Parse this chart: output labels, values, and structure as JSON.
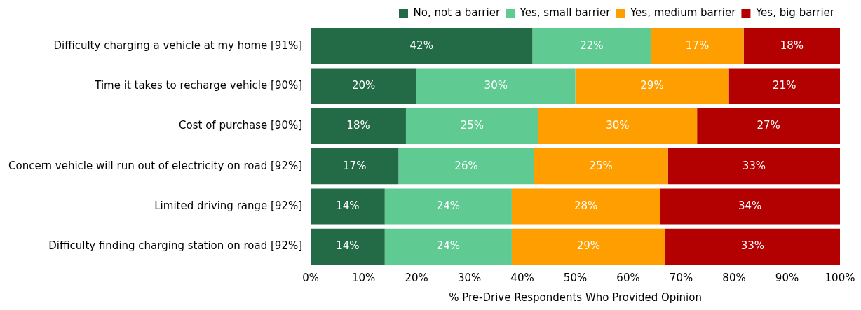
{
  "chart_data": {
    "type": "bar",
    "orientation": "horizontal",
    "stacked": true,
    "legend": "top right",
    "xlabel": "% Pre-Drive Respondents Who Provided Opinion",
    "categories": [
      "Difficulty charging a vehicle at my home [91%]",
      "Time it takes to recharge vehicle [90%]",
      "Cost of purchase [90%]",
      "Concern vehicle will run out of electricity on road [92%]",
      "Limited driving range [92%]",
      "Difficulty finding charging station on road [92%]"
    ],
    "series": [
      {
        "name": "No, not a barrier",
        "color": "#236a46",
        "values": [
          41.9,
          20,
          18,
          16.6,
          14,
          14
        ],
        "value_labels": [
          "42%",
          "20%",
          "18%",
          "17%",
          "14%",
          "14%"
        ]
      },
      {
        "name": "Yes, small barrier",
        "color": "#5fcb93",
        "values": [
          22.4,
          30,
          25,
          25.6,
          24,
          24
        ],
        "value_labels": [
          "22%",
          "30%",
          "25%",
          "26%",
          "24%",
          "24%"
        ]
      },
      {
        "name": "Yes, medium barrier",
        "color": "#ff9e00",
        "values": [
          17.5,
          29,
          30,
          25.3,
          28,
          29
        ],
        "value_labels": [
          "17%",
          "29%",
          "30%",
          "25%",
          "28%",
          "29%"
        ]
      },
      {
        "name": "Yes, big barrier",
        "color": "#b30000",
        "values": [
          18.2,
          21,
          27,
          32.5,
          34,
          33
        ],
        "value_labels": [
          "18%",
          "21%",
          "27%",
          "33%",
          "34%",
          "33%"
        ]
      }
    ],
    "xlim": [
      0,
      100
    ],
    "xticks": [
      {
        "value": 0,
        "label": "0%"
      },
      {
        "value": 10,
        "label": "10%"
      },
      {
        "value": 20,
        "label": "20%"
      },
      {
        "value": 30,
        "label": "30%"
      },
      {
        "value": 40,
        "label": "40%"
      },
      {
        "value": 50,
        "label": "50%"
      },
      {
        "value": 60,
        "label": "60%"
      },
      {
        "value": 70,
        "label": "70%"
      },
      {
        "value": 80,
        "label": "80%"
      },
      {
        "value": 90,
        "label": "90%"
      },
      {
        "value": 100,
        "label": "100%"
      }
    ]
  }
}
